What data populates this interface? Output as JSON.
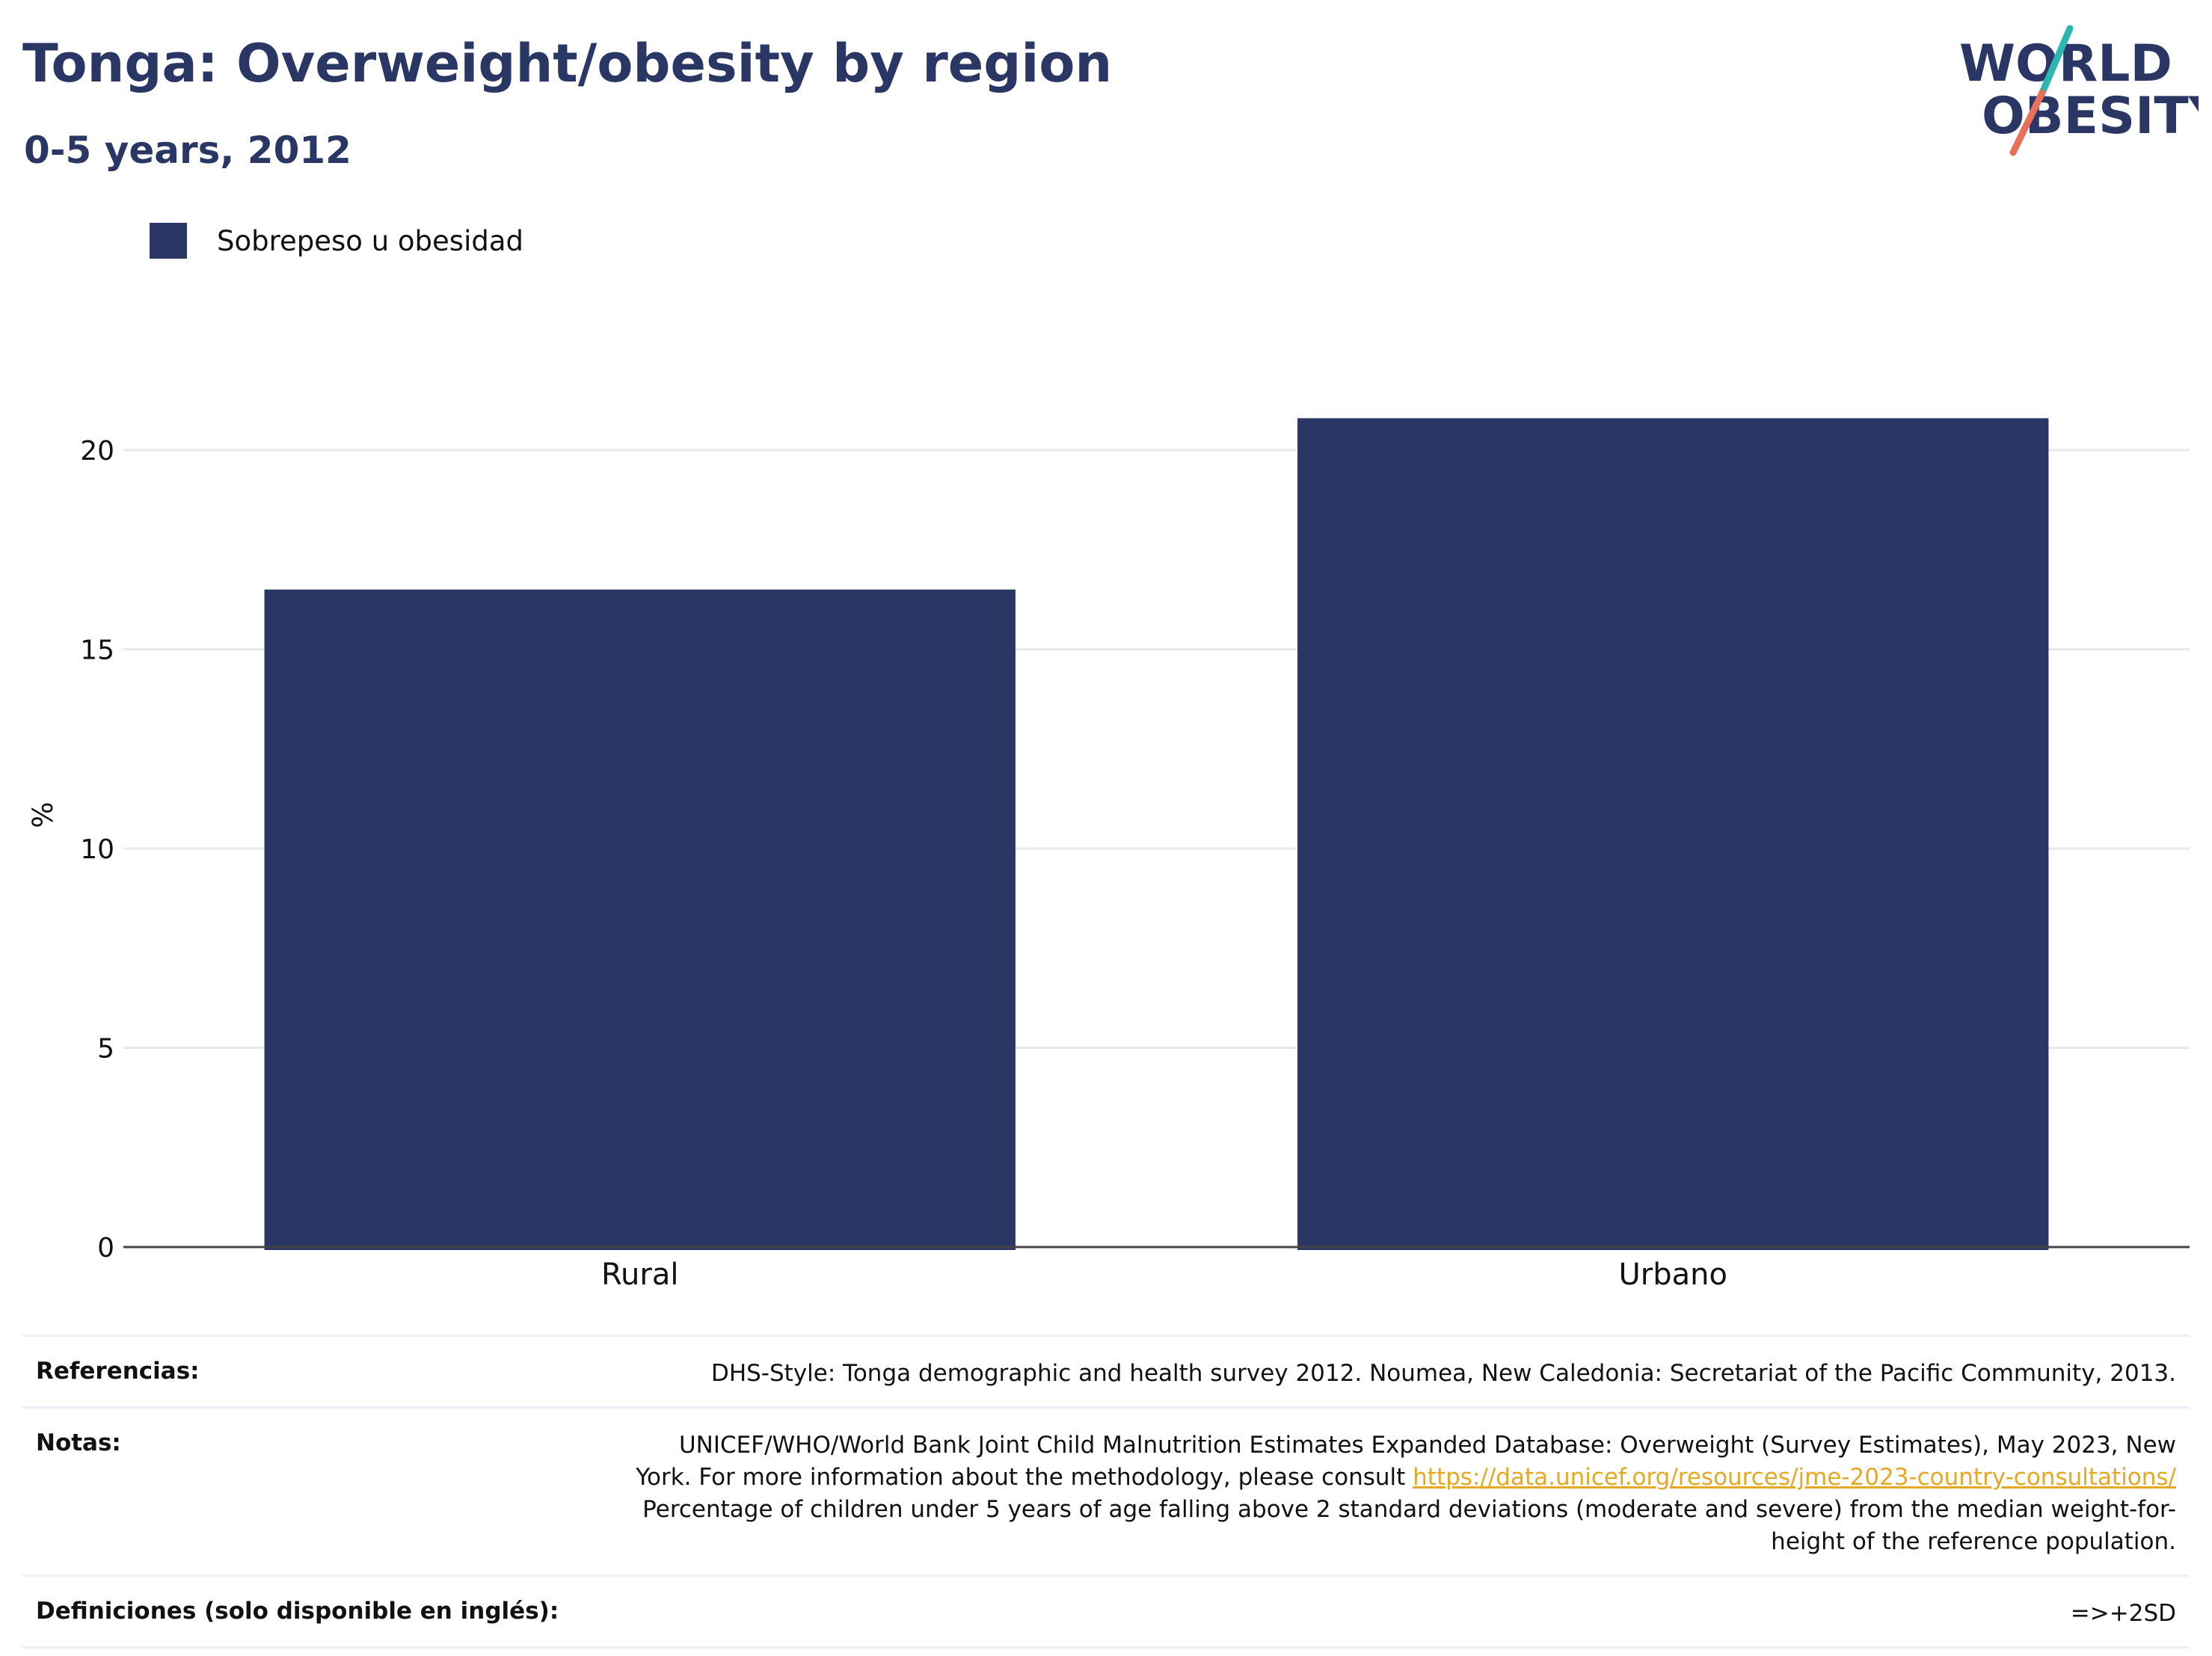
{
  "header": {
    "title": "Tonga: Overweight/obesity by region",
    "subtitle": "0-5 years, 2012"
  },
  "logo": {
    "line1": "WORLD",
    "line2": "OBESITY"
  },
  "colors": {
    "bar": "#2a3664",
    "accent_teal": "#2bb6b0",
    "accent_coral": "#e8705a",
    "link": "#e5a823"
  },
  "chart_data": {
    "type": "bar",
    "categories": [
      "Rural",
      "Urbano"
    ],
    "series": [
      {
        "name": "Sobrepeso u obesidad",
        "values": [
          16.5,
          20.8
        ]
      }
    ],
    "ylabel": "%",
    "xlabel": "",
    "ylim": [
      0,
      22
    ],
    "yticks": [
      0,
      5,
      10,
      15,
      20
    ],
    "grid": true,
    "legend": "top-left"
  },
  "footer": {
    "references_label": "Referencias:",
    "references_text": "DHS-Style: Tonga demographic and health survey 2012. Noumea, New Caledonia: Secretariat of the Pacific Community, 2013.",
    "notes_label": "Notas:",
    "notes_line1": "UNICEF/WHO/World Bank Joint Child Malnutrition Estimates Expanded Database: Overweight (Survey Estimates), May 2023, New York. For more information about the methodology, please consult",
    "notes_link": "https://data.unicef.org/resources/jme-2023-country-consultations/",
    "notes_line2": "Percentage of children under 5 years of age falling above 2 standard deviations (moderate and severe) from the median weight-for-height of the reference population.",
    "definitions_label": "Definiciones (solo disponible en inglés):",
    "definitions_text": "=>+2SD"
  }
}
